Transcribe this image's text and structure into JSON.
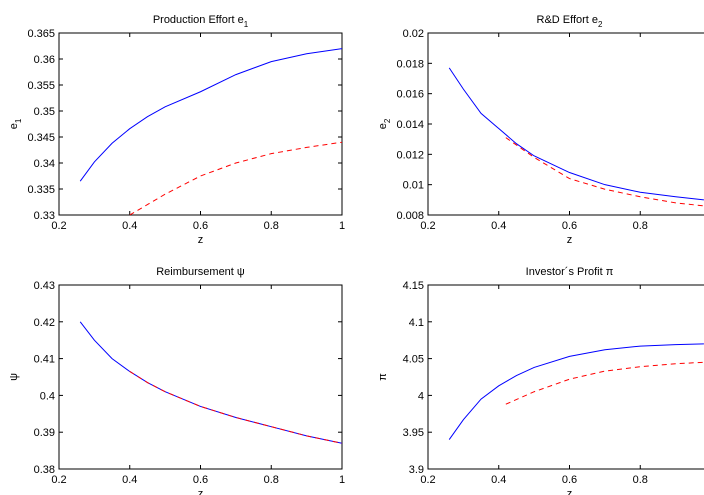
{
  "chart_data": [
    {
      "type": "line",
      "title": "Production Effort e",
      "title_sub": "1",
      "xlabel": "z",
      "ylabel": "e",
      "ylabel_sub": "1",
      "xlim": [
        0.2,
        1.0
      ],
      "ylim": [
        0.33,
        0.365
      ],
      "xticks": [
        "0.2",
        "0.4",
        "0.6",
        "0.8",
        "1"
      ],
      "yticks": [
        "0.33",
        "0.335",
        "0.34",
        "0.345",
        "0.35",
        "0.355",
        "0.36",
        "0.365"
      ],
      "series": [
        {
          "style": "solid",
          "color": "#0000ff",
          "x": [
            0.26,
            0.3,
            0.35,
            0.4,
            0.45,
            0.5,
            0.6,
            0.7,
            0.8,
            0.9,
            1.0
          ],
          "y": [
            0.3365,
            0.3402,
            0.3438,
            0.3466,
            0.3489,
            0.3508,
            0.3537,
            0.357,
            0.3595,
            0.361,
            0.362
          ]
        },
        {
          "style": "dashed",
          "color": "#ff0000",
          "x": [
            0.4,
            0.45,
            0.5,
            0.6,
            0.7,
            0.8,
            0.9,
            1.0
          ],
          "y": [
            0.33,
            0.332,
            0.334,
            0.3375,
            0.34,
            0.3418,
            0.343,
            0.344
          ]
        }
      ]
    },
    {
      "type": "line",
      "title": "R&D Effort e",
      "title_sub": "2",
      "xlabel": "z",
      "ylabel": "e",
      "ylabel_sub": "2",
      "xlim": [
        0.2,
        1.0
      ],
      "ylim": [
        0.008,
        0.02
      ],
      "xticks": [
        "0.2",
        "0.4",
        "0.6",
        "0.8"
      ],
      "yticks": [
        "0.008",
        "0.01",
        "0.012",
        "0.014",
        "0.016",
        "0.018",
        "0.02"
      ],
      "series": [
        {
          "style": "solid",
          "color": "#0000ff",
          "x": [
            0.26,
            0.3,
            0.35,
            0.4,
            0.45,
            0.5,
            0.6,
            0.7,
            0.8,
            0.9,
            0.98
          ],
          "y": [
            0.0177,
            0.0163,
            0.0147,
            0.0137,
            0.0127,
            0.0119,
            0.0108,
            0.01,
            0.0095,
            0.0092,
            0.009
          ]
        },
        {
          "style": "dashed",
          "color": "#ff0000",
          "x": [
            0.42,
            0.5,
            0.6,
            0.7,
            0.8,
            0.9,
            0.98
          ],
          "y": [
            0.0131,
            0.0118,
            0.0104,
            0.0097,
            0.0092,
            0.0088,
            0.0086
          ]
        }
      ]
    },
    {
      "type": "line",
      "title": "Reimbursement ψ",
      "title_sub": "",
      "xlabel": "z",
      "ylabel": "ψ",
      "ylabel_sub": "",
      "xlim": [
        0.2,
        1.0
      ],
      "ylim": [
        0.38,
        0.43
      ],
      "xticks": [
        "0.2",
        "0.4",
        "0.6",
        "0.8",
        "1"
      ],
      "yticks": [
        "0.38",
        "0.39",
        "0.4",
        "0.41",
        "0.42",
        "0.43"
      ],
      "series": [
        {
          "style": "solid",
          "color": "#0000ff",
          "x": [
            0.26,
            0.3,
            0.35,
            0.4,
            0.45,
            0.5,
            0.6,
            0.7,
            0.8,
            0.9,
            1.0
          ],
          "y": [
            0.42,
            0.415,
            0.41,
            0.4065,
            0.4035,
            0.401,
            0.397,
            0.394,
            0.3915,
            0.389,
            0.387
          ]
        },
        {
          "style": "dashed",
          "color": "#ff0000",
          "x": [
            0.4,
            0.45,
            0.5,
            0.6,
            0.7,
            0.8,
            0.9,
            1.0
          ],
          "y": [
            0.4065,
            0.4035,
            0.401,
            0.397,
            0.394,
            0.3915,
            0.389,
            0.387
          ]
        }
      ]
    },
    {
      "type": "line",
      "title": "Investor´s Profit π",
      "title_sub": "",
      "xlabel": "z",
      "ylabel": "π",
      "ylabel_sub": "",
      "xlim": [
        0.2,
        1.0
      ],
      "ylim": [
        3.9,
        4.15
      ],
      "xticks": [
        "0.2",
        "0.4",
        "0.6",
        "0.8"
      ],
      "yticks": [
        "3.9",
        "3.95",
        "4",
        "4.05",
        "4.1",
        "4.15"
      ],
      "series": [
        {
          "style": "solid",
          "color": "#0000ff",
          "x": [
            0.26,
            0.3,
            0.35,
            0.4,
            0.45,
            0.5,
            0.6,
            0.7,
            0.8,
            0.9,
            0.98
          ],
          "y": [
            3.94,
            3.967,
            3.995,
            4.013,
            4.027,
            4.038,
            4.053,
            4.062,
            4.067,
            4.069,
            4.07
          ]
        },
        {
          "style": "dashed",
          "color": "#ff0000",
          "x": [
            0.42,
            0.5,
            0.6,
            0.7,
            0.8,
            0.9,
            0.98
          ],
          "y": [
            3.988,
            4.005,
            4.022,
            4.033,
            4.039,
            4.043,
            4.045
          ]
        }
      ]
    }
  ]
}
